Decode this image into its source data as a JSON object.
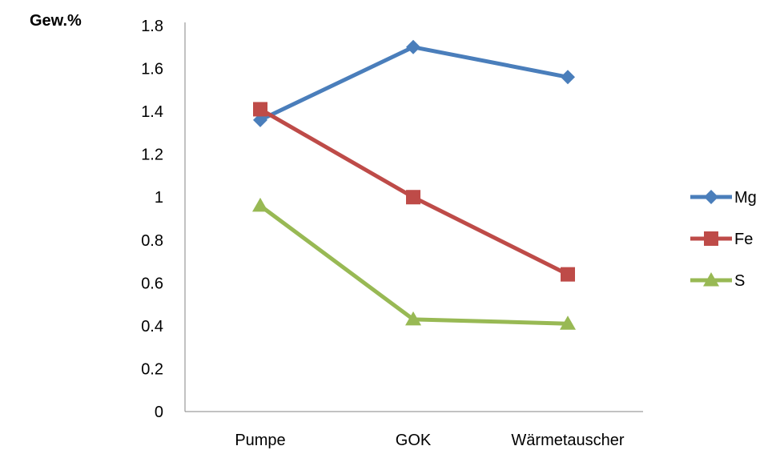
{
  "chart_data": {
    "type": "line",
    "ylabel": "Gew.%",
    "categories": [
      "Pumpe",
      "GOK",
      "Wärmetauscher"
    ],
    "ylim": [
      0,
      1.8
    ],
    "yticks": [
      0,
      0.2,
      0.4,
      0.6,
      0.8,
      1,
      1.2,
      1.4,
      1.6,
      1.8
    ],
    "ytick_labels": [
      "0",
      "0.2",
      "0.4",
      "0.6",
      "0.8",
      "1",
      "1.2",
      "1.4",
      "1.6",
      "1.8"
    ],
    "grid": false,
    "legend_position": "right",
    "series": [
      {
        "name": "Mg",
        "values": [
          1.36,
          1.7,
          1.56
        ],
        "color": "#4a7ebb",
        "marker": "diamond"
      },
      {
        "name": "Fe",
        "values": [
          1.41,
          1.0,
          0.64
        ],
        "color": "#be4b48",
        "marker": "square"
      },
      {
        "name": "S",
        "values": [
          0.96,
          0.43,
          0.41
        ],
        "color": "#98b954",
        "marker": "triangle"
      }
    ]
  }
}
